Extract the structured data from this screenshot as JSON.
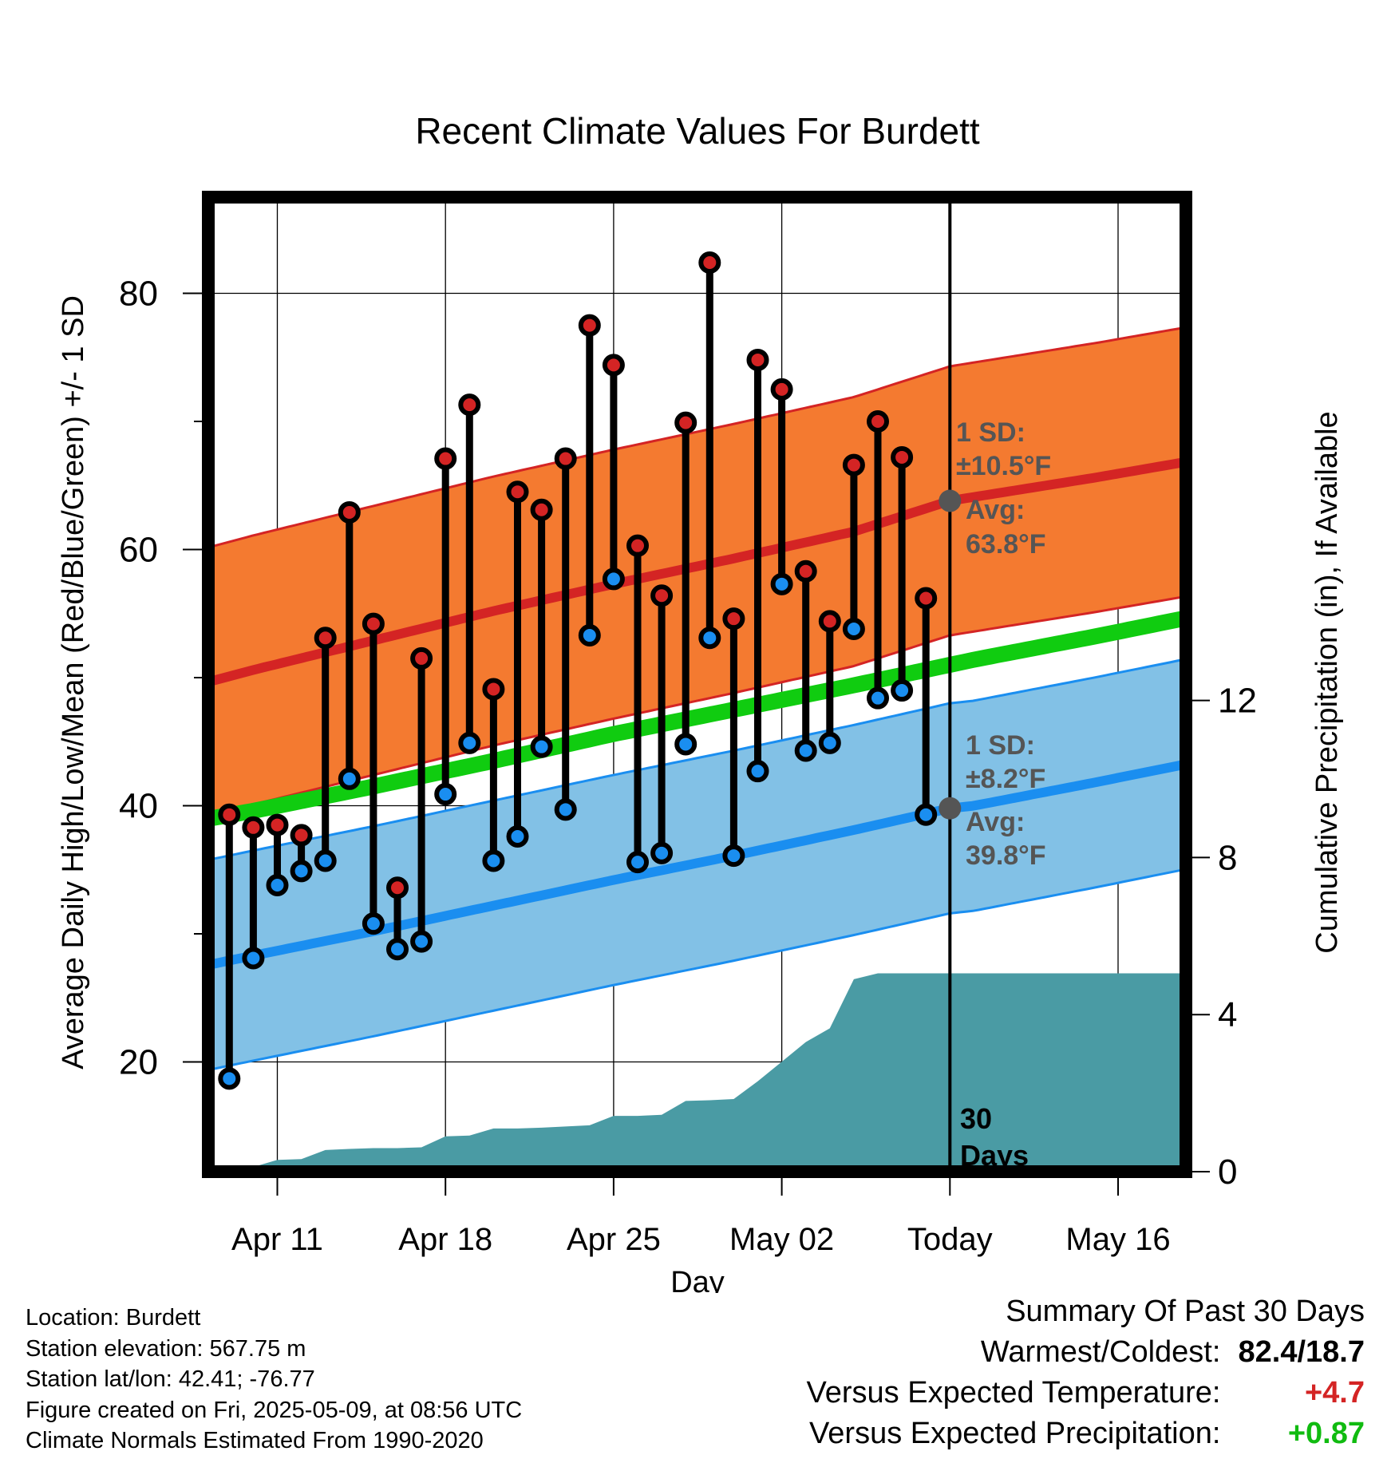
{
  "title": "Recent Climate Values For Burdett",
  "chart_data": {
    "type": "line",
    "title": "Recent Climate Values For Burdett",
    "xlabel": "Day",
    "ylabel": "Average Daily High/Low/Mean (Red/Blue/Green) +/- 1 SD",
    "y2label": "Cumulative Precipitation (in), If Available",
    "ylim": [
      10,
      86
    ],
    "y_ticks": [
      "20",
      "40",
      "60",
      "80"
    ],
    "y2lim": [
      0,
      18
    ],
    "y2_ticks": [
      "0",
      "4",
      "8",
      "12"
    ],
    "x_ticks": [
      "Apr 11",
      "Apr 18",
      "Apr 25",
      "May 02",
      "Today",
      "May 16"
    ],
    "x_tick_days": [
      11,
      18,
      25,
      32,
      39,
      46
    ],
    "xlim": [
      8.2,
      48.7
    ],
    "today_day": 39,
    "grid": true,
    "days": [
      9,
      10,
      11,
      12,
      13,
      14,
      15,
      16,
      17,
      18,
      19,
      20,
      21,
      22,
      23,
      24,
      25,
      26,
      27,
      28,
      29,
      30,
      31,
      32,
      33,
      34,
      35,
      36,
      37,
      38
    ],
    "observed_high": [
      39.3,
      38.3,
      38.5,
      37.7,
      53.1,
      62.9,
      54.2,
      33.6,
      51.5,
      67.1,
      71.3,
      49.1,
      64.5,
      63.1,
      67.1,
      77.5,
      74.4,
      60.3,
      56.4,
      69.9,
      82.4,
      54.6,
      74.8,
      72.5,
      58.3,
      54.4,
      66.6,
      70.0,
      67.2,
      56.2
    ],
    "observed_low": [
      18.7,
      28.1,
      33.8,
      34.9,
      35.7,
      42.1,
      30.8,
      28.8,
      29.4,
      40.9,
      44.9,
      35.7,
      37.6,
      44.6,
      39.7,
      53.3,
      57.7,
      35.6,
      36.3,
      44.8,
      53.1,
      36.1,
      42.7,
      57.3,
      44.3,
      44.9,
      53.8,
      48.4,
      49.0,
      39.3
    ],
    "normal_high": {
      "name": "Avg: 63.8°F",
      "days": [
        8.2,
        10,
        15,
        20,
        25,
        30,
        35,
        39,
        40,
        45,
        48.7
      ],
      "values": [
        49.7,
        50.6,
        52.9,
        55.2,
        57.3,
        59.3,
        61.4,
        63.8,
        64.1,
        65.6,
        66.8
      ],
      "sd": 10.5,
      "sd_label": "1 SD:",
      "sd_value": "±10.5°F",
      "avg_label": "Avg:",
      "avg_value": "63.8°F"
    },
    "normal_mean": {
      "days": [
        8.2,
        10,
        15,
        20,
        25,
        30,
        35,
        40,
        45,
        48.7
      ],
      "values": [
        39.0,
        39.6,
        41.5,
        43.5,
        45.6,
        47.5,
        49.4,
        51.4,
        53.2,
        54.6
      ]
    },
    "normal_low": {
      "name": "Avg: 39.8°F",
      "days": [
        8.2,
        10,
        15,
        20,
        25,
        30,
        35,
        39,
        40,
        45,
        48.7
      ],
      "values": [
        27.6,
        28.3,
        30.2,
        32.2,
        34.2,
        36.1,
        38.1,
        39.8,
        40.0,
        41.8,
        43.2
      ],
      "sd": 8.2,
      "sd_label": "1 SD:",
      "sd_value": "±8.2°F",
      "avg_label": "Avg:",
      "avg_value": "39.8°F"
    },
    "cumulative_precip": {
      "days": [
        9,
        10,
        11,
        12,
        13,
        14,
        15,
        16,
        17,
        18,
        19,
        20,
        21,
        22,
        23,
        24,
        25,
        26,
        27,
        28,
        29,
        30,
        31,
        32,
        33,
        34,
        35,
        36,
        37,
        38,
        39,
        48.7
      ],
      "values": [
        0.0,
        0.12,
        0.3,
        0.32,
        0.55,
        0.58,
        0.6,
        0.6,
        0.62,
        0.9,
        0.92,
        1.1,
        1.1,
        1.12,
        1.15,
        1.18,
        1.42,
        1.42,
        1.45,
        1.8,
        1.82,
        1.85,
        2.3,
        2.8,
        3.3,
        3.65,
        4.9,
        5.05,
        5.05,
        5.05,
        5.05,
        5.05
      ]
    },
    "precip_label": [
      "30",
      "Days"
    ],
    "colors": {
      "high_band": "#f47a30",
      "high_line": "#d42424",
      "mean_line": "#10cc10",
      "low_band": "#82c1e6",
      "low_line": "#1a8ef0",
      "precip": "#4a9ba4",
      "high_dot": "#d42424",
      "low_dot": "#1a8ef0",
      "avg_marker": "#555555",
      "annotation": "#555555"
    }
  },
  "station": {
    "location": "Location: Burdett",
    "elevation": "Station elevation: 567.75 m",
    "latlon": "Station lat/lon: 42.41; -76.77",
    "created": "Figure created on Fri, 2025-05-09, at 08:56 UTC",
    "normals": "Climate Normals Estimated From 1990-2020"
  },
  "summary": {
    "heading": "Summary Of Past 30 Days",
    "warmest_label": "Warmest/Coldest:",
    "warmest_value": "82.4/18.7",
    "temp_label": "Versus Expected Temperature:",
    "temp_value": "+4.7",
    "temp_color": "#d42424",
    "precip_label": "Versus Expected Precipitation:",
    "precip_value": "+0.87",
    "precip_color": "#10bb10"
  }
}
